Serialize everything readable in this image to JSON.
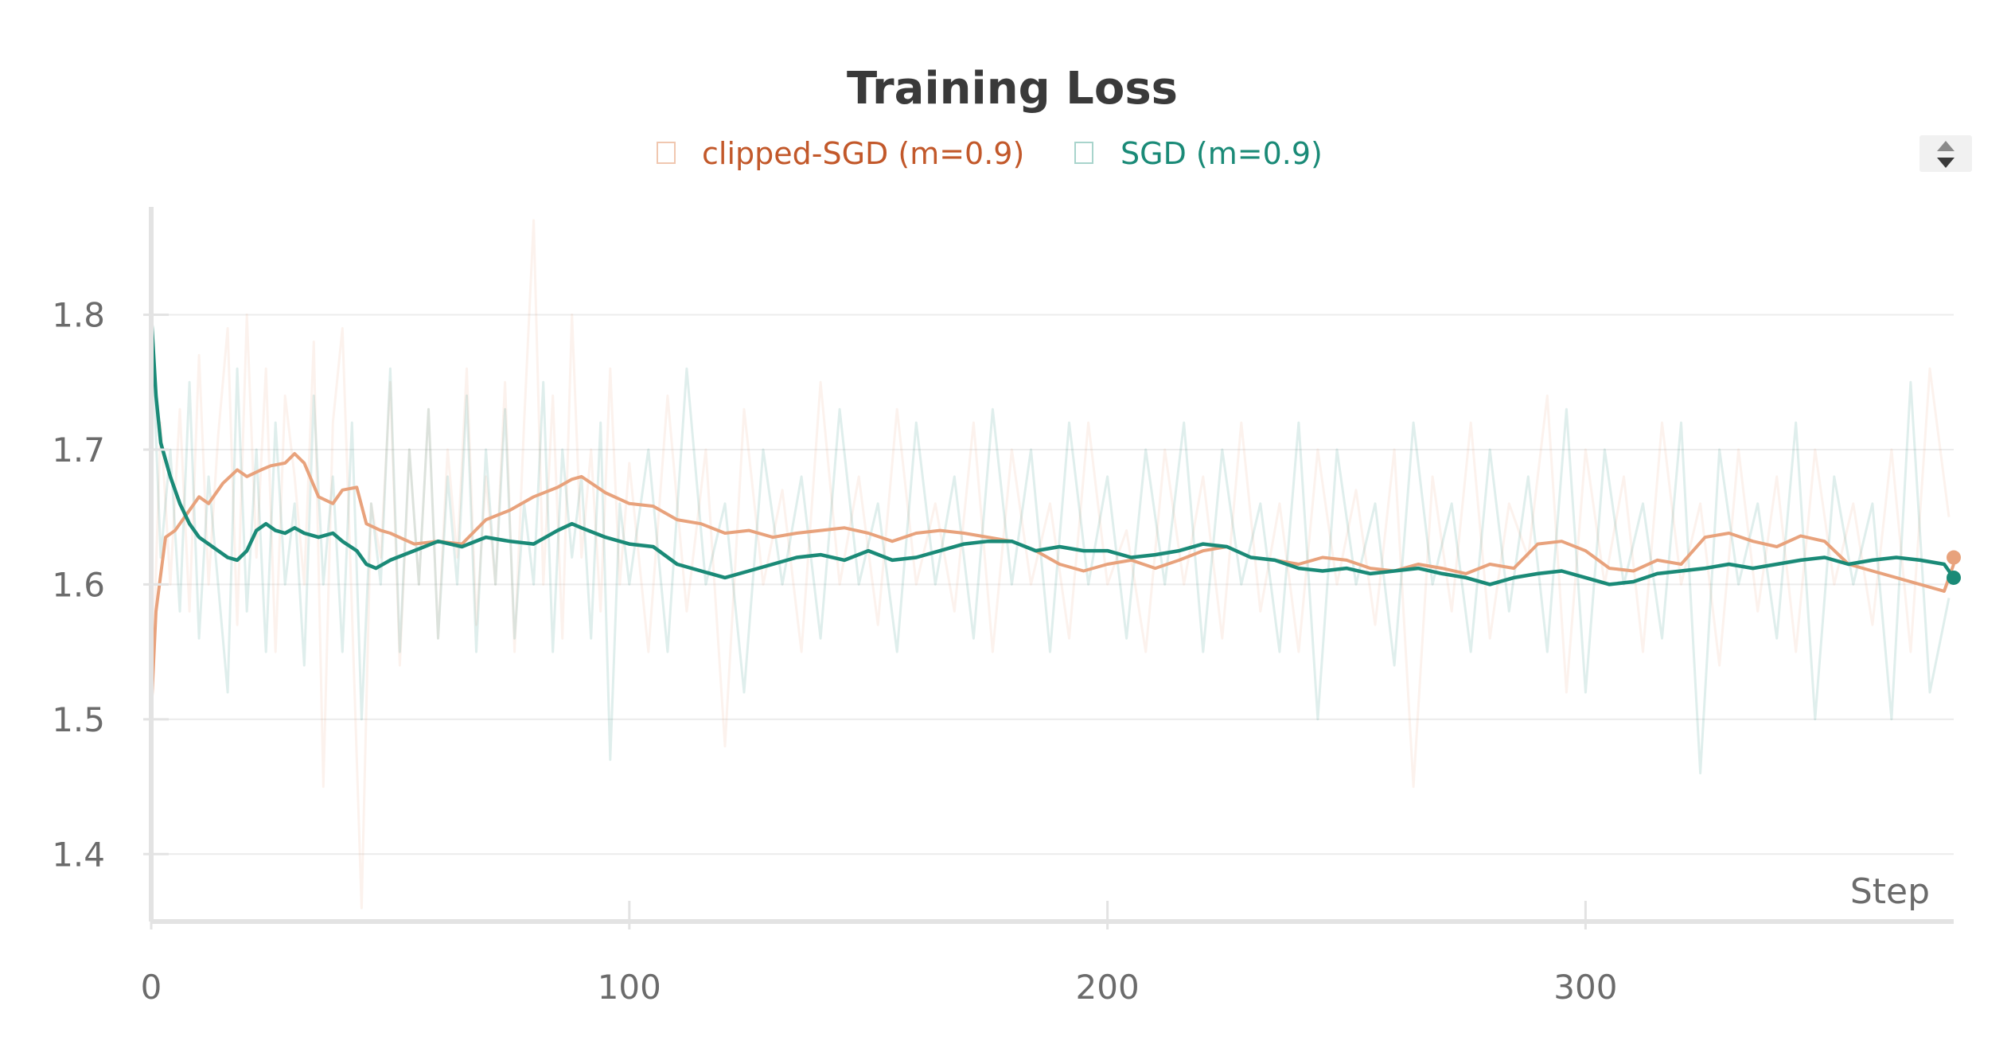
{
  "chart_data": {
    "type": "line",
    "title": "Training Loss",
    "xlabel": "Step",
    "ylabel": "",
    "xlim": [
      0,
      377
    ],
    "ylim": [
      1.35,
      1.88
    ],
    "xticks": [
      0,
      100,
      200,
      300
    ],
    "yticks": [
      1.4,
      1.5,
      1.6,
      1.7,
      1.8
    ],
    "grid": true,
    "legend": "top-center",
    "series": [
      {
        "name": "clipped-SGD (m=0.9)",
        "color": "#e8a27c",
        "legend_color": "#c2582a",
        "smoothed": {
          "x": [
            0,
            1,
            3,
            5,
            8,
            10,
            12,
            15,
            18,
            20,
            23,
            25,
            28,
            30,
            32,
            35,
            38,
            40,
            43,
            45,
            48,
            50,
            55,
            60,
            65,
            70,
            75,
            80,
            85,
            88,
            90,
            95,
            100,
            105,
            110,
            115,
            120,
            125,
            130,
            135,
            140,
            145,
            150,
            155,
            160,
            165,
            170,
            175,
            180,
            185,
            190,
            195,
            200,
            205,
            210,
            215,
            220,
            225,
            230,
            235,
            240,
            245,
            250,
            255,
            260,
            265,
            270,
            275,
            280,
            285,
            290,
            295,
            300,
            305,
            310,
            315,
            320,
            325,
            330,
            335,
            340,
            345,
            350,
            355,
            360,
            365,
            370,
            375,
            377
          ],
          "y": [
            1.505,
            1.58,
            1.635,
            1.64,
            1.655,
            1.665,
            1.66,
            1.675,
            1.685,
            1.68,
            1.685,
            1.688,
            1.69,
            1.697,
            1.69,
            1.665,
            1.66,
            1.67,
            1.672,
            1.645,
            1.64,
            1.638,
            1.63,
            1.632,
            1.63,
            1.648,
            1.655,
            1.665,
            1.672,
            1.678,
            1.68,
            1.668,
            1.66,
            1.658,
            1.648,
            1.645,
            1.638,
            1.64,
            1.635,
            1.638,
            1.64,
            1.642,
            1.638,
            1.632,
            1.638,
            1.64,
            1.638,
            1.635,
            1.632,
            1.625,
            1.615,
            1.61,
            1.615,
            1.618,
            1.612,
            1.618,
            1.625,
            1.628,
            1.62,
            1.618,
            1.615,
            1.62,
            1.618,
            1.612,
            1.61,
            1.615,
            1.612,
            1.608,
            1.615,
            1.612,
            1.63,
            1.632,
            1.625,
            1.612,
            1.61,
            1.618,
            1.615,
            1.635,
            1.638,
            1.632,
            1.628,
            1.636,
            1.632,
            1.615,
            1.61,
            1.605,
            1.6,
            1.595,
            1.615
          ]
        },
        "raw": {
          "x": [
            0,
            2,
            4,
            6,
            8,
            10,
            12,
            14,
            16,
            18,
            20,
            22,
            24,
            26,
            28,
            30,
            32,
            34,
            36,
            38,
            40,
            42,
            44,
            46,
            48,
            50,
            52,
            54,
            56,
            58,
            60,
            62,
            64,
            66,
            68,
            70,
            72,
            74,
            76,
            78,
            80,
            82,
            84,
            86,
            88,
            90,
            92,
            94,
            96,
            98,
            100,
            104,
            108,
            112,
            116,
            120,
            124,
            128,
            132,
            136,
            140,
            144,
            148,
            152,
            156,
            160,
            164,
            168,
            172,
            176,
            180,
            184,
            188,
            192,
            196,
            200,
            204,
            208,
            212,
            216,
            220,
            224,
            228,
            232,
            236,
            240,
            244,
            248,
            252,
            256,
            260,
            264,
            268,
            272,
            276,
            280,
            284,
            288,
            292,
            296,
            300,
            304,
            308,
            312,
            316,
            320,
            324,
            328,
            332,
            336,
            340,
            344,
            348,
            352,
            356,
            360,
            364,
            368,
            372,
            376
          ],
          "y": [
            1.5,
            1.72,
            1.6,
            1.73,
            1.58,
            1.77,
            1.6,
            1.71,
            1.79,
            1.57,
            1.8,
            1.62,
            1.76,
            1.55,
            1.74,
            1.68,
            1.6,
            1.78,
            1.45,
            1.72,
            1.79,
            1.58,
            1.36,
            1.66,
            1.62,
            1.75,
            1.54,
            1.7,
            1.6,
            1.73,
            1.56,
            1.7,
            1.62,
            1.76,
            1.57,
            1.68,
            1.6,
            1.75,
            1.55,
            1.72,
            1.87,
            1.6,
            1.74,
            1.56,
            1.8,
            1.62,
            1.7,
            1.58,
            1.76,
            1.6,
            1.69,
            1.55,
            1.74,
            1.58,
            1.7,
            1.48,
            1.73,
            1.6,
            1.67,
            1.55,
            1.75,
            1.6,
            1.68,
            1.57,
            1.73,
            1.6,
            1.66,
            1.58,
            1.72,
            1.55,
            1.7,
            1.6,
            1.66,
            1.56,
            1.72,
            1.6,
            1.64,
            1.55,
            1.7,
            1.6,
            1.68,
            1.56,
            1.72,
            1.58,
            1.66,
            1.55,
            1.7,
            1.6,
            1.67,
            1.57,
            1.7,
            1.45,
            1.68,
            1.58,
            1.72,
            1.56,
            1.66,
            1.62,
            1.74,
            1.52,
            1.7,
            1.6,
            1.68,
            1.55,
            1.72,
            1.6,
            1.66,
            1.54,
            1.7,
            1.58,
            1.68,
            1.55,
            1.7,
            1.6,
            1.66,
            1.57,
            1.7,
            1.55,
            1.76,
            1.65
          ]
        },
        "end_marker": 1.62
      },
      {
        "name": "SGD (m=0.9)",
        "color": "#1a8a77",
        "legend_color": "#1a8a77",
        "smoothed": {
          "x": [
            0,
            1,
            2,
            4,
            6,
            8,
            10,
            12,
            14,
            16,
            18,
            20,
            22,
            24,
            26,
            28,
            30,
            32,
            35,
            38,
            40,
            43,
            45,
            47,
            50,
            55,
            60,
            65,
            70,
            75,
            80,
            85,
            88,
            90,
            95,
            100,
            105,
            110,
            115,
            120,
            125,
            130,
            135,
            140,
            145,
            150,
            155,
            160,
            165,
            170,
            175,
            180,
            185,
            190,
            195,
            200,
            205,
            210,
            215,
            220,
            225,
            230,
            235,
            240,
            245,
            250,
            255,
            260,
            265,
            270,
            275,
            280,
            285,
            290,
            295,
            300,
            305,
            310,
            315,
            320,
            325,
            330,
            335,
            340,
            345,
            350,
            355,
            360,
            365,
            370,
            375,
            377
          ],
          "y": [
            1.8,
            1.74,
            1.705,
            1.68,
            1.66,
            1.645,
            1.635,
            1.63,
            1.625,
            1.62,
            1.618,
            1.625,
            1.64,
            1.645,
            1.64,
            1.638,
            1.642,
            1.638,
            1.635,
            1.638,
            1.632,
            1.625,
            1.615,
            1.612,
            1.618,
            1.625,
            1.632,
            1.628,
            1.635,
            1.632,
            1.63,
            1.64,
            1.645,
            1.642,
            1.635,
            1.63,
            1.628,
            1.615,
            1.61,
            1.605,
            1.61,
            1.615,
            1.62,
            1.622,
            1.618,
            1.625,
            1.618,
            1.62,
            1.625,
            1.63,
            1.632,
            1.632,
            1.625,
            1.628,
            1.625,
            1.625,
            1.62,
            1.622,
            1.625,
            1.63,
            1.628,
            1.62,
            1.618,
            1.612,
            1.61,
            1.612,
            1.608,
            1.61,
            1.612,
            1.608,
            1.605,
            1.6,
            1.605,
            1.608,
            1.61,
            1.605,
            1.6,
            1.602,
            1.608,
            1.61,
            1.612,
            1.615,
            1.612,
            1.615,
            1.618,
            1.62,
            1.615,
            1.618,
            1.62,
            1.618,
            1.615,
            1.605
          ]
        },
        "raw": {
          "x": [
            0,
            2,
            4,
            6,
            8,
            10,
            12,
            14,
            16,
            18,
            20,
            22,
            24,
            26,
            28,
            30,
            32,
            34,
            36,
            38,
            40,
            42,
            44,
            46,
            48,
            50,
            52,
            54,
            56,
            58,
            60,
            62,
            64,
            66,
            68,
            70,
            72,
            74,
            76,
            78,
            80,
            82,
            84,
            86,
            88,
            90,
            92,
            94,
            96,
            98,
            100,
            104,
            108,
            112,
            116,
            120,
            124,
            128,
            132,
            136,
            140,
            144,
            148,
            152,
            156,
            160,
            164,
            168,
            172,
            176,
            180,
            184,
            188,
            192,
            196,
            200,
            204,
            208,
            212,
            216,
            220,
            224,
            228,
            232,
            236,
            240,
            244,
            248,
            252,
            256,
            260,
            264,
            268,
            272,
            276,
            280,
            284,
            288,
            292,
            296,
            300,
            304,
            308,
            312,
            316,
            320,
            324,
            328,
            332,
            336,
            340,
            344,
            348,
            352,
            356,
            360,
            364,
            368,
            372,
            376
          ],
          "y": [
            1.8,
            1.62,
            1.7,
            1.58,
            1.75,
            1.56,
            1.68,
            1.6,
            1.52,
            1.76,
            1.58,
            1.7,
            1.55,
            1.72,
            1.6,
            1.66,
            1.54,
            1.74,
            1.6,
            1.68,
            1.55,
            1.72,
            1.5,
            1.66,
            1.6,
            1.76,
            1.55,
            1.7,
            1.6,
            1.73,
            1.56,
            1.68,
            1.6,
            1.74,
            1.55,
            1.7,
            1.6,
            1.73,
            1.56,
            1.66,
            1.6,
            1.75,
            1.55,
            1.7,
            1.62,
            1.68,
            1.56,
            1.72,
            1.47,
            1.66,
            1.6,
            1.7,
            1.55,
            1.76,
            1.6,
            1.66,
            1.52,
            1.7,
            1.6,
            1.68,
            1.56,
            1.73,
            1.6,
            1.66,
            1.55,
            1.72,
            1.6,
            1.68,
            1.56,
            1.73,
            1.6,
            1.7,
            1.55,
            1.72,
            1.6,
            1.68,
            1.56,
            1.7,
            1.6,
            1.72,
            1.55,
            1.7,
            1.6,
            1.66,
            1.55,
            1.72,
            1.5,
            1.7,
            1.6,
            1.66,
            1.54,
            1.72,
            1.6,
            1.66,
            1.55,
            1.7,
            1.58,
            1.68,
            1.55,
            1.73,
            1.52,
            1.7,
            1.6,
            1.66,
            1.56,
            1.72,
            1.46,
            1.7,
            1.6,
            1.66,
            1.56,
            1.72,
            1.5,
            1.68,
            1.6,
            1.66,
            1.5,
            1.75,
            1.52,
            1.59
          ]
        },
        "end_marker": 1.605
      }
    ]
  }
}
